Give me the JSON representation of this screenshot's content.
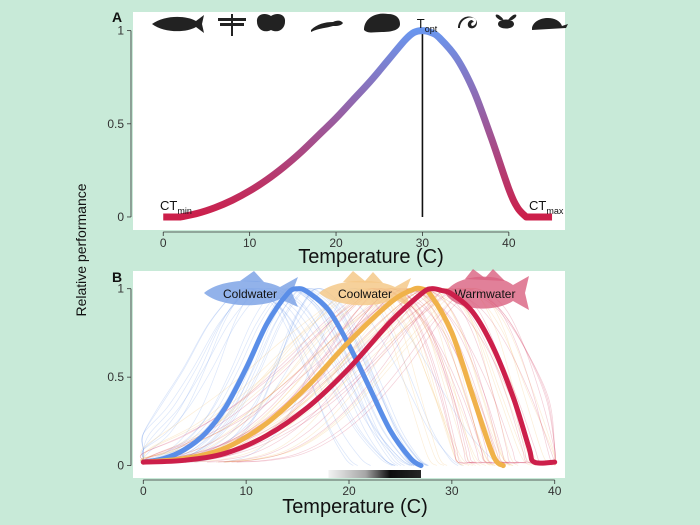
{
  "figure": {
    "ylabel": "Relative performance",
    "colors": {
      "background": "#c8ead8",
      "panel": "#ffffff",
      "cold": "#5a8ee8",
      "cool": "#f0b24a",
      "warm": "#cc1f4a",
      "gradient_low": "#cc1f4a",
      "gradient_high": "#6a96ee"
    }
  },
  "chart_data": [
    {
      "panel_label": "A",
      "type": "line",
      "xlabel": "Temperature (C)",
      "ylabel": "Relative performance",
      "xlim": [
        -3.5,
        46.5
      ],
      "ylim": [
        -0.07,
        1.1
      ],
      "xticks": [
        0,
        10,
        20,
        30,
        40
      ],
      "yticks": [
        0,
        0.5,
        1
      ],
      "ytick_labels": [
        "0",
        "0.5",
        "1"
      ],
      "grid": false,
      "icons": [
        "fish-icon",
        "dragonfly-icon",
        "moth-icon",
        "lizard-icon",
        "frog-icon",
        "worm-icon",
        "bee-icon",
        "turtle-icon"
      ],
      "series": [
        {
          "color_scale": [
            "#cc1f4a",
            "#6a96ee"
          ],
          "x": [
            2,
            4,
            6,
            8,
            10,
            12,
            14,
            16,
            18,
            20,
            22,
            24,
            26,
            28,
            29,
            30,
            31,
            32,
            34,
            36,
            38,
            40,
            41,
            42
          ],
          "y": [
            0,
            0.02,
            0.05,
            0.09,
            0.14,
            0.2,
            0.27,
            0.35,
            0.44,
            0.53,
            0.63,
            0.73,
            0.84,
            0.95,
            0.99,
            1.0,
            0.99,
            0.96,
            0.85,
            0.67,
            0.42,
            0.15,
            0.05,
            0
          ]
        }
      ],
      "annotations": {
        "topt": {
          "main": "T",
          "sub": "opt",
          "x": 30
        },
        "ctmin": {
          "main": "CT",
          "sub": "min",
          "x_range": [
            0,
            2
          ]
        },
        "ctmax": {
          "main": "CT",
          "sub": "max",
          "x_range": [
            42,
            45
          ]
        }
      }
    },
    {
      "panel_label": "B",
      "type": "line",
      "xlabel": "Temperature (C)",
      "ylabel": "Relative performance",
      "xlim": [
        -1,
        41
      ],
      "ylim": [
        -0.07,
        1.1
      ],
      "xticks": [
        0,
        10,
        20,
        30,
        40
      ],
      "yticks": [
        0,
        0.5,
        1
      ],
      "ytick_labels": [
        "0",
        "0.5",
        "1"
      ],
      "grid": false,
      "series": [
        {
          "name": "Coldwater",
          "color": "#5a8ee8",
          "x": [
            0,
            2,
            4,
            6,
            8,
            10,
            12,
            14,
            15,
            16,
            18,
            20,
            22,
            24,
            26,
            27
          ],
          "y": [
            0.02,
            0.04,
            0.09,
            0.18,
            0.33,
            0.55,
            0.8,
            0.97,
            1.0,
            0.98,
            0.88,
            0.68,
            0.44,
            0.2,
            0.04,
            0
          ]
        },
        {
          "name": "Coolwater",
          "color": "#f0b24a",
          "x": [
            0,
            4,
            8,
            12,
            16,
            20,
            24,
            26,
            27,
            28,
            30,
            32,
            34,
            35
          ],
          "y": [
            0.02,
            0.04,
            0.1,
            0.24,
            0.45,
            0.7,
            0.92,
            0.99,
            1.0,
            0.96,
            0.75,
            0.4,
            0.06,
            0
          ]
        },
        {
          "name": "Warmwater",
          "color": "#cc1f4a",
          "x": [
            0,
            4,
            8,
            12,
            16,
            20,
            24,
            27,
            28,
            29,
            30,
            32,
            34,
            36,
            37.5,
            38,
            40
          ],
          "y": [
            0.02,
            0.03,
            0.07,
            0.17,
            0.33,
            0.55,
            0.81,
            0.97,
            1.0,
            0.99,
            0.97,
            0.87,
            0.67,
            0.38,
            0.1,
            0.02,
            0.02
          ]
        }
      ],
      "rug": {
        "from": 18,
        "to": 27,
        "peak": 24
      }
    }
  ]
}
